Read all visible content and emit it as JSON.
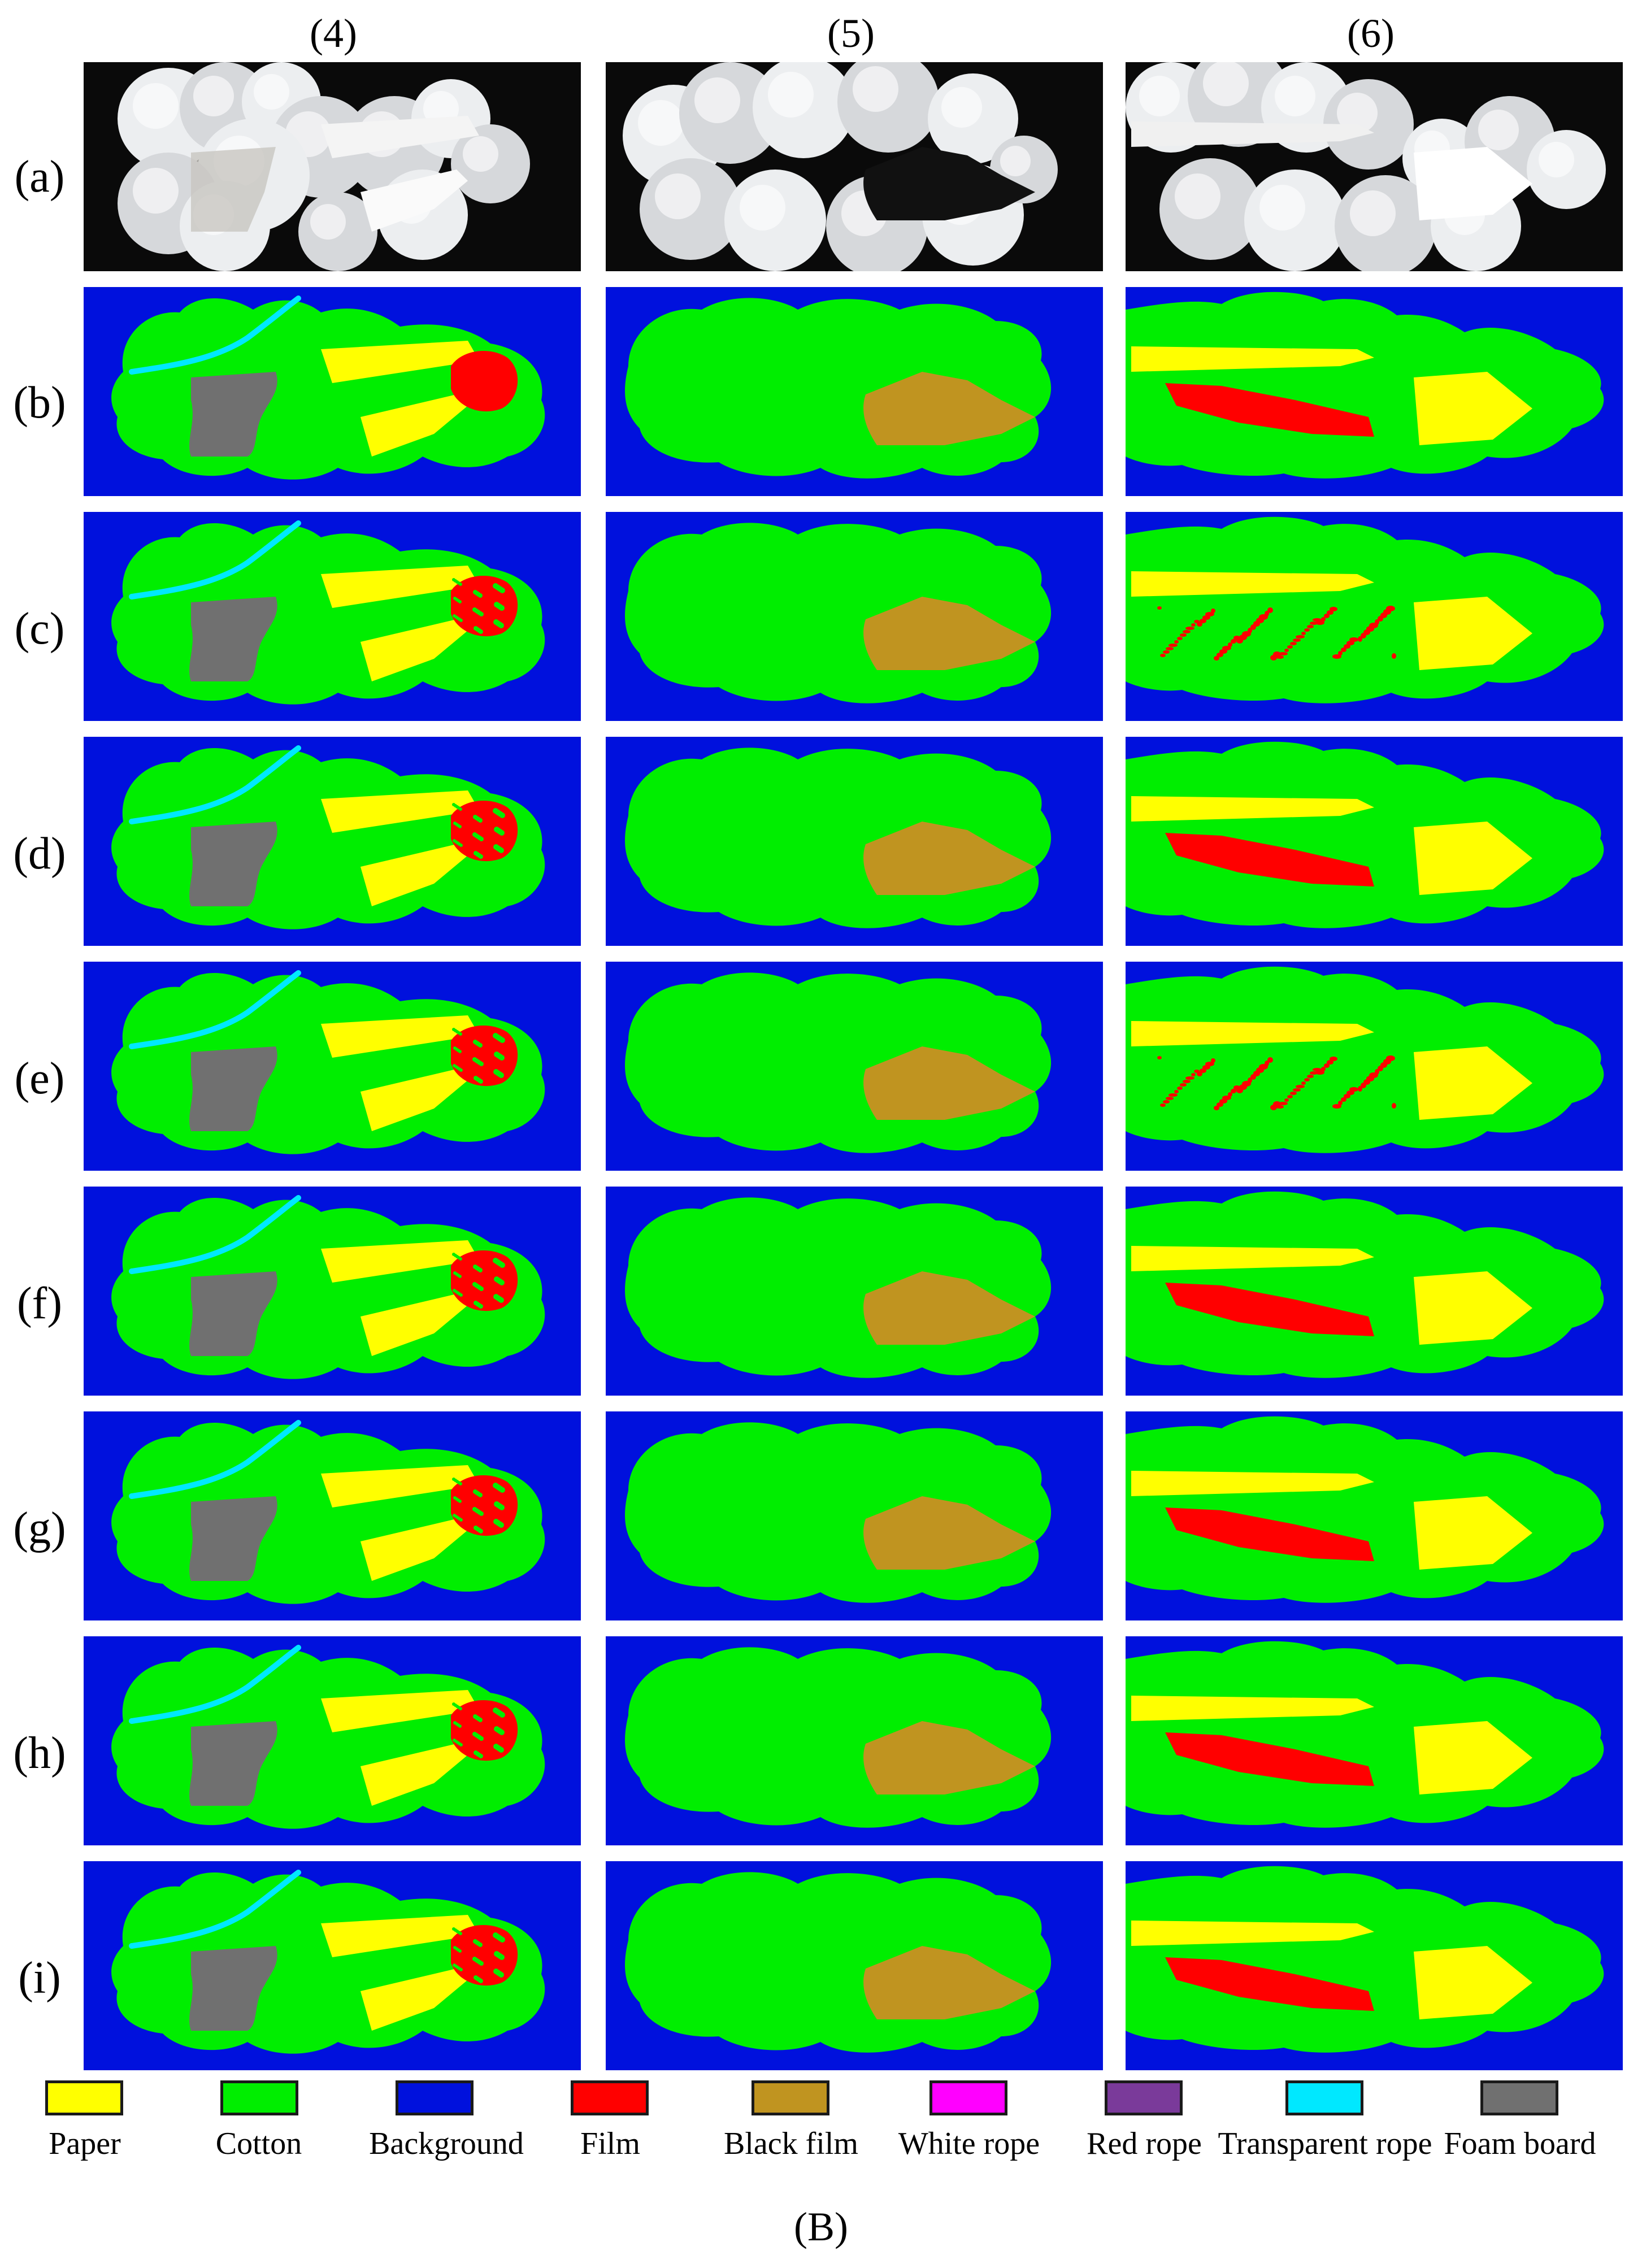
{
  "columns": [
    "(4)",
    "(5)",
    "(6)"
  ],
  "rows": [
    "(a)",
    "(b)",
    "(c)",
    "(d)",
    "(e)",
    "(f)",
    "(g)",
    "(h)",
    "(i)"
  ],
  "legend": [
    {
      "label": "Paper",
      "color": "#ffff00"
    },
    {
      "label": "Cotton",
      "color": "#00ee00"
    },
    {
      "label": "Background",
      "color": "#0011dd"
    },
    {
      "label": "Film",
      "color": "#ff0000"
    },
    {
      "label": "Black film",
      "color": "#c09420"
    },
    {
      "label": "White rope",
      "color": "#ff00ff"
    },
    {
      "label": "Red rope",
      "color": "#7a3a9a"
    },
    {
      "label": "Transparent rope",
      "color": "#00e8ff"
    },
    {
      "label": "Foam board",
      "color": "#707070"
    }
  ],
  "caption": "(B)"
}
